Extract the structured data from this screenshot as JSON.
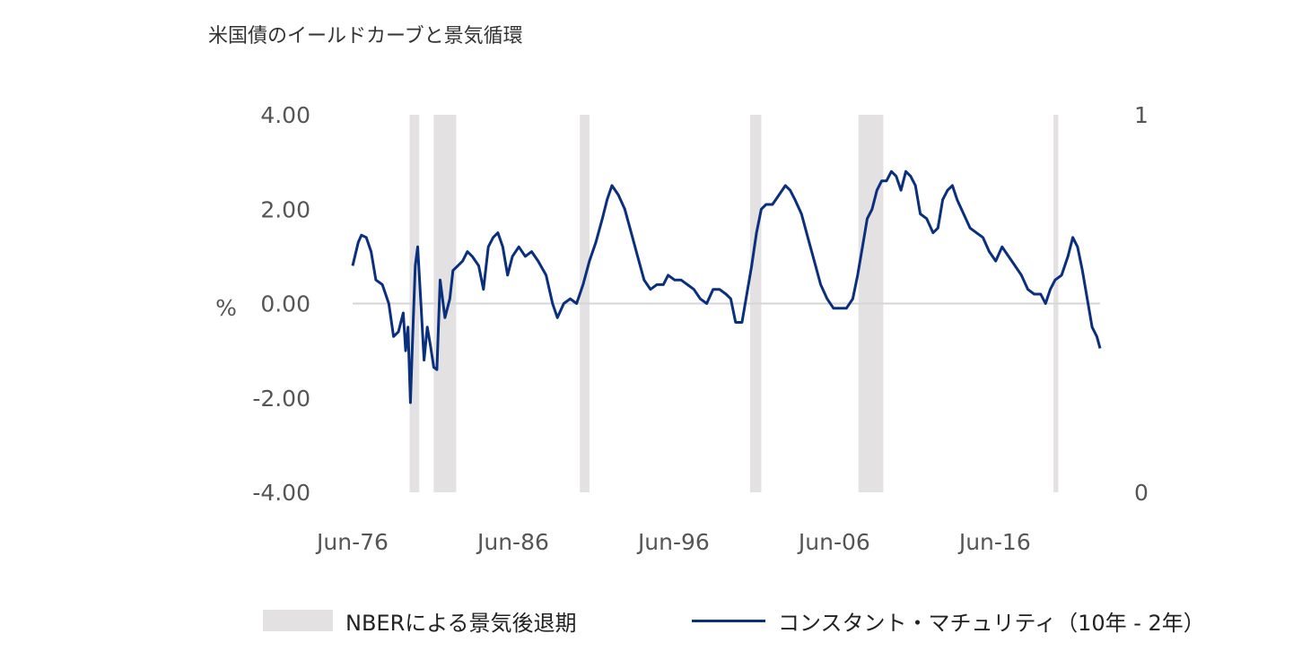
{
  "chart_data": {
    "type": "line",
    "title": "米国債のイールドカーブと景気循環",
    "ylabel": "%",
    "ylim": [
      -4,
      4
    ],
    "yticks": [
      "4.00",
      "2.00",
      "0.00",
      "-2.00",
      "-4.00"
    ],
    "y2ticks": [
      "1",
      "0"
    ],
    "y2lim": [
      0,
      1
    ],
    "xlim": [
      1976.45,
      2023.0
    ],
    "xticks": [
      {
        "label": "Jun-76",
        "x": 1976.45
      },
      {
        "label": "Jun-86",
        "x": 1986.45
      },
      {
        "label": "Jun-96",
        "x": 1996.45
      },
      {
        "label": "Jun-06",
        "x": 2006.45
      },
      {
        "label": "Jun-16",
        "x": 2016.45
      }
    ],
    "grid": false,
    "zero_line": true,
    "legend_position": "bottom",
    "recessions": [
      {
        "start": 1980.0,
        "end": 1980.6
      },
      {
        "start": 1981.5,
        "end": 1982.9
      },
      {
        "start": 1990.6,
        "end": 1991.2
      },
      {
        "start": 2001.2,
        "end": 2001.9
      },
      {
        "start": 2007.95,
        "end": 2009.5
      },
      {
        "start": 2020.1,
        "end": 2020.4
      }
    ],
    "series": [
      {
        "name": "コンスタント・マチュリティ（10年 - 2年）",
        "color": "#0a2f7c",
        "points": [
          [
            1976.45,
            0.8
          ],
          [
            1976.8,
            1.3
          ],
          [
            1977.0,
            1.45
          ],
          [
            1977.3,
            1.4
          ],
          [
            1977.6,
            1.1
          ],
          [
            1977.9,
            0.5
          ],
          [
            1978.3,
            0.4
          ],
          [
            1978.7,
            0.0
          ],
          [
            1979.0,
            -0.7
          ],
          [
            1979.3,
            -0.6
          ],
          [
            1979.6,
            -0.2
          ],
          [
            1979.75,
            -1.0
          ],
          [
            1979.9,
            -0.5
          ],
          [
            1980.05,
            -2.1
          ],
          [
            1980.2,
            -0.6
          ],
          [
            1980.35,
            0.8
          ],
          [
            1980.5,
            1.2
          ],
          [
            1980.7,
            0.0
          ],
          [
            1980.9,
            -1.2
          ],
          [
            1981.1,
            -0.5
          ],
          [
            1981.3,
            -0.9
          ],
          [
            1981.5,
            -1.35
          ],
          [
            1981.7,
            -1.4
          ],
          [
            1981.9,
            0.5
          ],
          [
            1982.2,
            -0.3
          ],
          [
            1982.5,
            0.1
          ],
          [
            1982.7,
            0.7
          ],
          [
            1983.0,
            0.8
          ],
          [
            1983.3,
            0.9
          ],
          [
            1983.6,
            1.1
          ],
          [
            1983.9,
            1.0
          ],
          [
            1984.3,
            0.8
          ],
          [
            1984.6,
            0.3
          ],
          [
            1984.9,
            1.2
          ],
          [
            1985.2,
            1.4
          ],
          [
            1985.5,
            1.5
          ],
          [
            1985.8,
            1.2
          ],
          [
            1986.1,
            0.6
          ],
          [
            1986.4,
            1.0
          ],
          [
            1986.8,
            1.2
          ],
          [
            1987.2,
            1.0
          ],
          [
            1987.6,
            1.1
          ],
          [
            1988.0,
            0.9
          ],
          [
            1988.5,
            0.6
          ],
          [
            1988.9,
            0.0
          ],
          [
            1989.2,
            -0.3
          ],
          [
            1989.6,
            0.0
          ],
          [
            1990.0,
            0.1
          ],
          [
            1990.4,
            0.0
          ],
          [
            1990.8,
            0.4
          ],
          [
            1991.2,
            0.9
          ],
          [
            1991.6,
            1.3
          ],
          [
            1992.0,
            1.8
          ],
          [
            1992.3,
            2.2
          ],
          [
            1992.6,
            2.5
          ],
          [
            1993.0,
            2.3
          ],
          [
            1993.4,
            2.0
          ],
          [
            1993.8,
            1.5
          ],
          [
            1994.2,
            1.0
          ],
          [
            1994.6,
            0.5
          ],
          [
            1995.0,
            0.3
          ],
          [
            1995.4,
            0.4
          ],
          [
            1995.8,
            0.4
          ],
          [
            1996.1,
            0.6
          ],
          [
            1996.5,
            0.5
          ],
          [
            1996.9,
            0.5
          ],
          [
            1997.3,
            0.4
          ],
          [
            1997.7,
            0.3
          ],
          [
            1998.1,
            0.1
          ],
          [
            1998.5,
            0.0
          ],
          [
            1998.9,
            0.3
          ],
          [
            1999.3,
            0.3
          ],
          [
            1999.7,
            0.2
          ],
          [
            2000.0,
            0.1
          ],
          [
            2000.3,
            -0.4
          ],
          [
            2000.7,
            -0.4
          ],
          [
            2001.0,
            0.2
          ],
          [
            2001.3,
            0.8
          ],
          [
            2001.6,
            1.5
          ],
          [
            2001.9,
            2.0
          ],
          [
            2002.2,
            2.1
          ],
          [
            2002.6,
            2.1
          ],
          [
            2003.0,
            2.3
          ],
          [
            2003.4,
            2.5
          ],
          [
            2003.7,
            2.4
          ],
          [
            2004.0,
            2.2
          ],
          [
            2004.4,
            1.9
          ],
          [
            2004.8,
            1.4
          ],
          [
            2005.2,
            0.9
          ],
          [
            2005.6,
            0.4
          ],
          [
            2006.0,
            0.1
          ],
          [
            2006.4,
            -0.1
          ],
          [
            2006.8,
            -0.1
          ],
          [
            2007.2,
            -0.1
          ],
          [
            2007.6,
            0.1
          ],
          [
            2007.9,
            0.6
          ],
          [
            2008.2,
            1.2
          ],
          [
            2008.5,
            1.8
          ],
          [
            2008.8,
            2.0
          ],
          [
            2009.1,
            2.4
          ],
          [
            2009.4,
            2.6
          ],
          [
            2009.7,
            2.6
          ],
          [
            2010.0,
            2.8
          ],
          [
            2010.3,
            2.7
          ],
          [
            2010.6,
            2.4
          ],
          [
            2010.9,
            2.8
          ],
          [
            2011.2,
            2.7
          ],
          [
            2011.5,
            2.5
          ],
          [
            2011.8,
            1.9
          ],
          [
            2012.2,
            1.8
          ],
          [
            2012.6,
            1.5
          ],
          [
            2012.9,
            1.6
          ],
          [
            2013.2,
            2.2
          ],
          [
            2013.5,
            2.4
          ],
          [
            2013.8,
            2.5
          ],
          [
            2014.1,
            2.2
          ],
          [
            2014.5,
            1.9
          ],
          [
            2014.9,
            1.6
          ],
          [
            2015.3,
            1.5
          ],
          [
            2015.7,
            1.4
          ],
          [
            2016.1,
            1.1
          ],
          [
            2016.5,
            0.9
          ],
          [
            2016.9,
            1.2
          ],
          [
            2017.3,
            1.0
          ],
          [
            2017.7,
            0.8
          ],
          [
            2018.1,
            0.6
          ],
          [
            2018.5,
            0.3
          ],
          [
            2018.9,
            0.2
          ],
          [
            2019.3,
            0.2
          ],
          [
            2019.6,
            0.0
          ],
          [
            2019.9,
            0.3
          ],
          [
            2020.2,
            0.5
          ],
          [
            2020.6,
            0.6
          ],
          [
            2021.0,
            1.0
          ],
          [
            2021.3,
            1.4
          ],
          [
            2021.6,
            1.2
          ],
          [
            2021.9,
            0.7
          ],
          [
            2022.2,
            0.1
          ],
          [
            2022.5,
            -0.5
          ],
          [
            2022.8,
            -0.7
          ],
          [
            2023.0,
            -0.95
          ]
        ]
      }
    ]
  },
  "legend": {
    "recession_label": "NBERによる景気後退期",
    "line_label": "コンスタント・マチュリティ（10年 - 2年）"
  }
}
